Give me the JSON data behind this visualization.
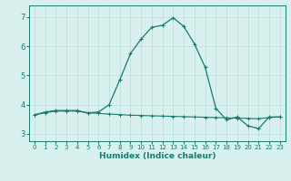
{
  "xlabel": "Humidex (Indice chaleur)",
  "x": [
    0,
    1,
    2,
    3,
    4,
    5,
    6,
    7,
    8,
    9,
    10,
    11,
    12,
    13,
    14,
    15,
    16,
    17,
    18,
    19,
    20,
    21,
    22,
    23
  ],
  "line1": [
    3.65,
    3.75,
    3.8,
    3.8,
    3.8,
    3.72,
    3.75,
    4.0,
    4.85,
    5.75,
    6.25,
    6.65,
    6.72,
    6.98,
    6.68,
    6.08,
    5.28,
    3.88,
    3.48,
    3.58,
    3.28,
    3.18,
    3.58,
    3.58
  ],
  "line2": [
    3.65,
    3.72,
    3.78,
    3.78,
    3.78,
    3.72,
    3.7,
    3.68,
    3.66,
    3.64,
    3.63,
    3.62,
    3.61,
    3.6,
    3.59,
    3.58,
    3.57,
    3.56,
    3.55,
    3.54,
    3.53,
    3.52,
    3.56,
    3.58
  ],
  "line_color": "#1a7a6e",
  "bg_color": "#d8f0ee",
  "grid_color": "#b8ddd8",
  "ylim": [
    2.75,
    7.4
  ],
  "xlim": [
    -0.5,
    23.5
  ],
  "yticks": [
    3,
    4,
    5,
    6,
    7
  ],
  "xticks": [
    0,
    1,
    2,
    3,
    4,
    5,
    6,
    7,
    8,
    9,
    10,
    11,
    12,
    13,
    14,
    15,
    16,
    17,
    18,
    19,
    20,
    21,
    22,
    23
  ]
}
